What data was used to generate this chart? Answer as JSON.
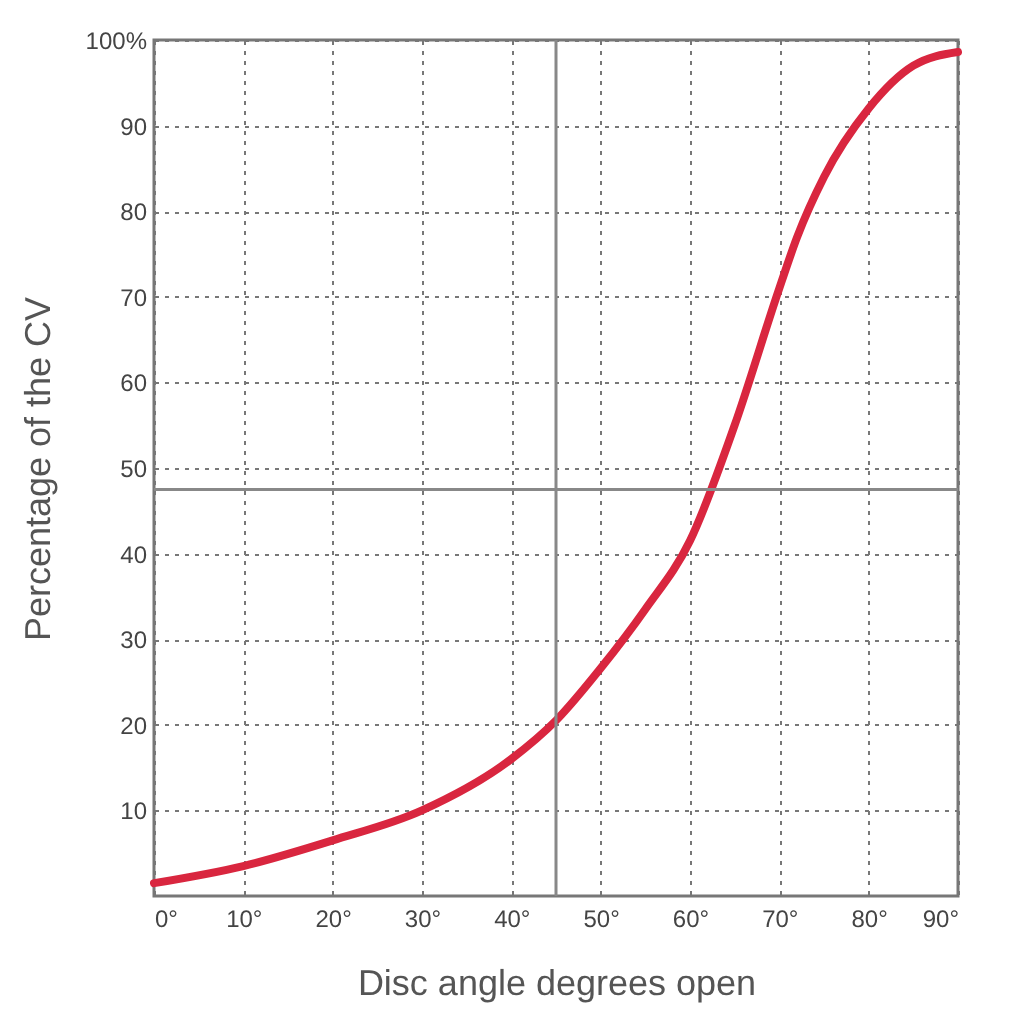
{
  "chart_data": {
    "type": "line",
    "xlabel": "Disc angle degrees open",
    "ylabel": "Percentage of the CV",
    "x": [
      0,
      10,
      20,
      30,
      40,
      45,
      50,
      55,
      60,
      65,
      70,
      72,
      75,
      80,
      85,
      90
    ],
    "series": [
      {
        "color": "#d9263f",
        "values": [
          1.5,
          3.5,
          6.5,
          10,
          16,
          20.5,
          26.6,
          33.5,
          41.5,
          55,
          71,
          77,
          84,
          92,
          97,
          98.6
        ]
      }
    ],
    "xlim": [
      0,
      90
    ],
    "ylim": [
      0,
      100
    ],
    "xticks": [
      {
        "value": 0,
        "label": "0°"
      },
      {
        "value": 10,
        "label": "10°"
      },
      {
        "value": 20,
        "label": "20°"
      },
      {
        "value": 30,
        "label": "30°"
      },
      {
        "value": 40,
        "label": "40°"
      },
      {
        "value": 50,
        "label": "50°"
      },
      {
        "value": 60,
        "label": "60°"
      },
      {
        "value": 70,
        "label": "70°"
      },
      {
        "value": 80,
        "label": "80°"
      },
      {
        "value": 90,
        "label": "90°"
      }
    ],
    "yticks": [
      10,
      20,
      30,
      40,
      50,
      60,
      70,
      80,
      90,
      {
        "value": 100,
        "label": "100%"
      }
    ],
    "ref_lines": [
      {
        "axis": "x",
        "value": 45,
        "color": "#888888"
      },
      {
        "axis": "y",
        "value": 47.5,
        "color": "#888888"
      }
    ],
    "grid": true,
    "marker": "none",
    "line_style": "solid"
  }
}
